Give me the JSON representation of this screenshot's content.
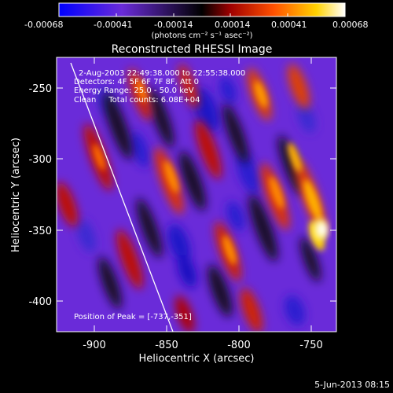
{
  "colorbar": {
    "tick_labels": [
      "-0.00068",
      "-0.00041",
      "-0.00014",
      "0.00014",
      "0.00041",
      "0.00068"
    ],
    "unit_label": "(photons cm⁻² s⁻¹ asec⁻²)",
    "min": -0.00068,
    "max": 0.00068
  },
  "plot": {
    "title": "Reconstructed RHESSI Image",
    "xlabel": "Heliocentric X (arcsec)",
    "ylabel": "Heliocentric Y (arcsec)",
    "x_ticks": [
      "-900",
      "-850",
      "-800",
      "-750"
    ],
    "y_ticks": [
      "-250",
      "-300",
      "-350",
      "-400"
    ],
    "xlim": [
      -922,
      -728
    ],
    "ylim": [
      -423,
      -228
    ],
    "annotation_lines": [
      "2-Aug-2003 22:49:38.000 to 22:55:38.000",
      "Detectors: 4F 5F 6F 7F 8F, Att 0",
      "Energy Range: 25.0 - 50.0 keV",
      "Clean     Total counts: 6.08E+04"
    ],
    "peak_label": "Position of Peak = [-737,-351]"
  },
  "footer": {
    "date": "5-Jun-2013 08:15"
  },
  "colors": {
    "colorbar_stops": [
      "#0000ff",
      "#6a2bd9",
      "#000000",
      "#a00000",
      "#ff5000",
      "#ffd200",
      "#ffffff"
    ]
  }
}
